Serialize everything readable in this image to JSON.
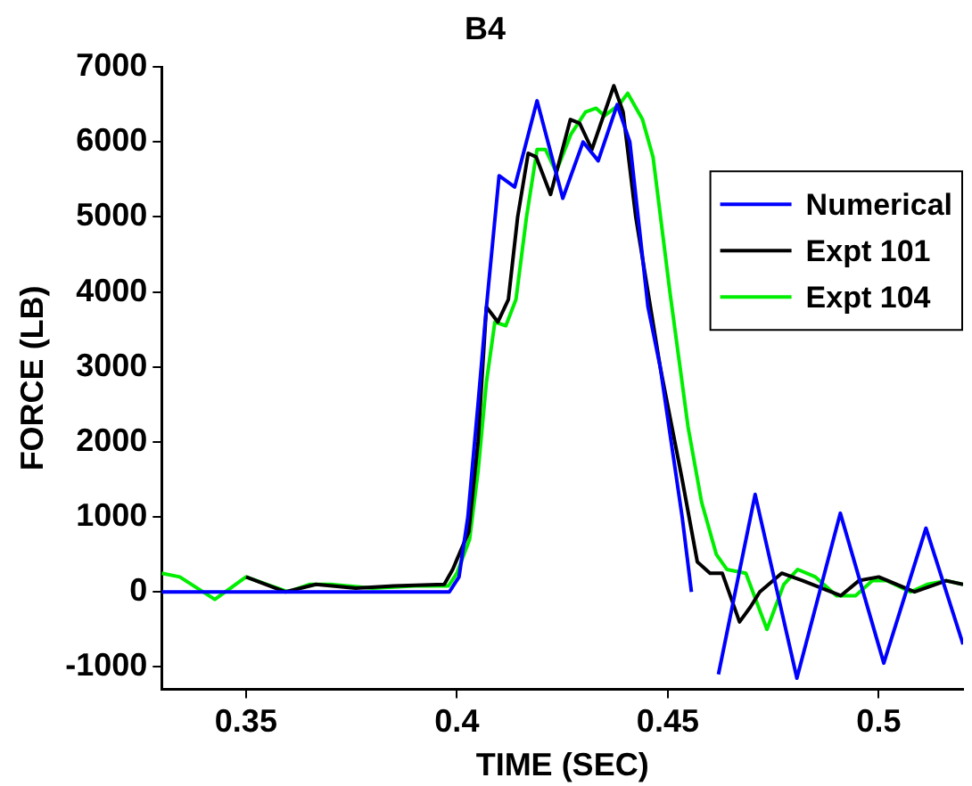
{
  "chart_data": {
    "type": "line",
    "title": "B4",
    "xlabel": "TIME (SEC)",
    "ylabel": "FORCE (LB)",
    "xlim": [
      0.33,
      0.52
    ],
    "ylim": [
      -1300,
      7000
    ],
    "xticks": [
      0.35,
      0.4,
      0.45,
      0.5
    ],
    "yticks": [
      -1000,
      0,
      1000,
      2000,
      3000,
      4000,
      5000,
      6000,
      7000
    ],
    "grid": false,
    "legend": "top right",
    "marker": "none",
    "line_style": "solid",
    "series": [
      {
        "name": "Numerical",
        "color": "#0000ff",
        "x": [
          0.33,
          0.3982,
          0.4005,
          0.4026,
          0.405,
          0.407,
          0.41,
          0.4137,
          0.419,
          0.4251,
          0.4299,
          0.4335,
          0.438,
          0.441,
          0.4453,
          0.4482,
          0.4534,
          0.4556,
          0.4585,
          0.4605,
          0.462,
          0.4707,
          0.4806,
          0.4909,
          0.5012,
          0.5112,
          0.52
        ],
        "values": [
          0,
          0,
          200,
          1000,
          2500,
          3800,
          5550,
          5400,
          6550,
          5250,
          6000,
          5750,
          6500,
          6000,
          3800,
          3000,
          1000,
          0,
          null,
          null,
          -1100,
          1300,
          -1150,
          1050,
          -950,
          850,
          -700
        ]
      },
      {
        "name": "Expt 101",
        "color": "#000000",
        "x": [
          0.35,
          0.3593,
          0.3666,
          0.376,
          0.385,
          0.397,
          0.399,
          0.4028,
          0.405,
          0.407,
          0.4097,
          0.4122,
          0.4144,
          0.4169,
          0.4188,
          0.4222,
          0.4269,
          0.4291,
          0.432,
          0.4372,
          0.4394,
          0.4424,
          0.4482,
          0.4534,
          0.457,
          0.46,
          0.4629,
          0.467,
          0.4696,
          0.4718,
          0.477,
          0.482,
          0.491,
          0.4953,
          0.5,
          0.5085,
          0.516,
          0.52
        ],
        "values": [
          200,
          0,
          100,
          50,
          80,
          100,
          300,
          800,
          2000,
          3800,
          3600,
          3900,
          5000,
          5850,
          5800,
          5300,
          6300,
          6250,
          5900,
          6750,
          6400,
          5000,
          3000,
          1500,
          400,
          250,
          250,
          -400,
          -200,
          0,
          250,
          150,
          -50,
          150,
          200,
          0,
          150,
          100
        ]
      },
      {
        "name": "Expt 104",
        "color": "#00ee00",
        "x": [
          0.33,
          0.3343,
          0.3426,
          0.35,
          0.355,
          0.36,
          0.365,
          0.37,
          0.38,
          0.39,
          0.398,
          0.4,
          0.403,
          0.405,
          0.407,
          0.409,
          0.4116,
          0.414,
          0.4165,
          0.419,
          0.421,
          0.4235,
          0.427,
          0.4305,
          0.433,
          0.435,
          0.4385,
          0.4405,
          0.444,
          0.4465,
          0.4505,
          0.4548,
          0.458,
          0.4615,
          0.464,
          0.4685,
          0.4735,
          0.4775,
          0.4808,
          0.485,
          0.49,
          0.4945,
          0.4985,
          0.502,
          0.5075,
          0.5115,
          0.516,
          0.52
        ],
        "values": [
          250,
          200,
          -100,
          200,
          100,
          0,
          100,
          100,
          50,
          80,
          80,
          250,
          700,
          1600,
          2800,
          3600,
          3550,
          3900,
          5000,
          5900,
          5900,
          5600,
          6100,
          6400,
          6450,
          6350,
          6500,
          6650,
          6300,
          5800,
          4000,
          2200,
          1200,
          500,
          300,
          250,
          -500,
          100,
          300,
          200,
          -50,
          -50,
          150,
          150,
          0,
          100,
          150,
          100
        ]
      }
    ]
  }
}
